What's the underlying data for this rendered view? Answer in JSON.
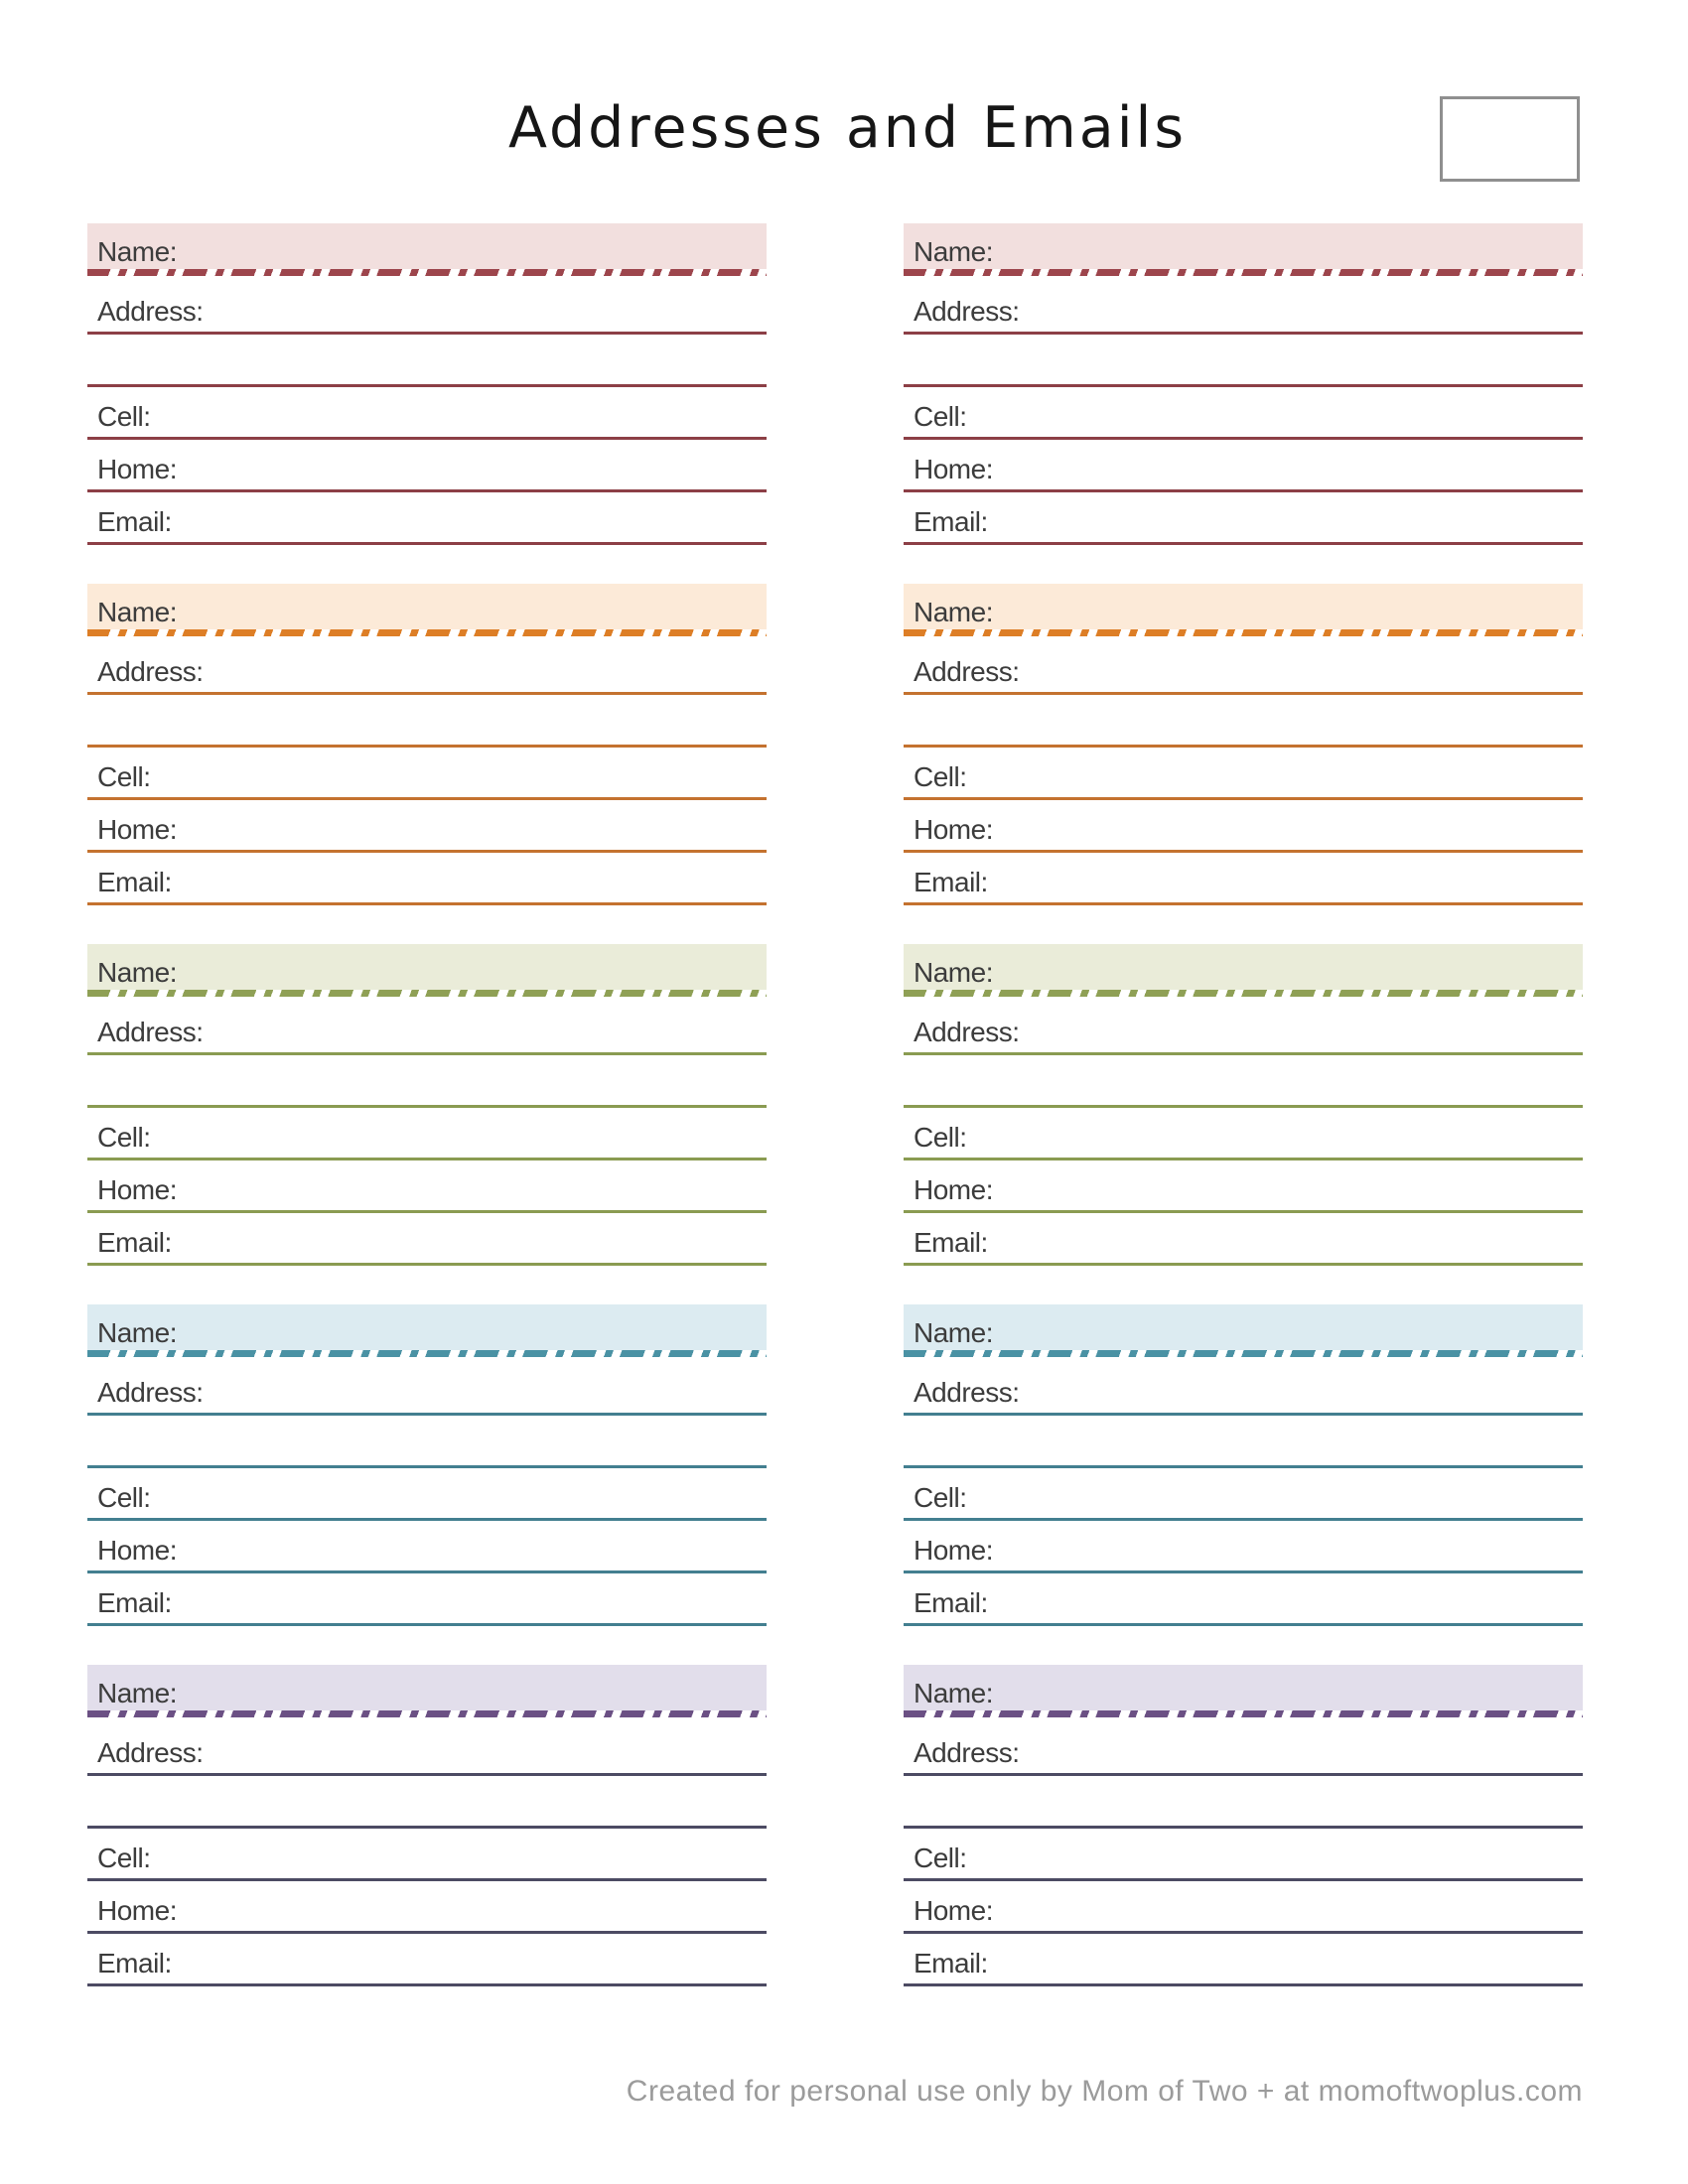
{
  "page": {
    "title": "Addresses and Emails",
    "footer": "Created for personal use only by Mom of Two + at momoftwoplus.com"
  },
  "field_labels": {
    "name": "Name:",
    "address": "Address:",
    "cell": "Cell:",
    "home": "Home:",
    "email": "Email:"
  },
  "themes": [
    {
      "name": "rose",
      "header_bg": "#f2dfde",
      "dash_color": "#9d454c",
      "line_color": "#8c3f46"
    },
    {
      "name": "orange",
      "header_bg": "#fcead8",
      "dash_color": "#dd7e26",
      "line_color": "#c4722f"
    },
    {
      "name": "olive",
      "header_bg": "#eaecd9",
      "dash_color": "#8fa055",
      "line_color": "#8a9b51"
    },
    {
      "name": "teal",
      "header_bg": "#dcebf1",
      "dash_color": "#4a92a4",
      "line_color": "#437f90"
    },
    {
      "name": "purple",
      "header_bg": "#e2deeb",
      "dash_color": "#6b5084",
      "line_color": "#4c4b63"
    }
  ]
}
